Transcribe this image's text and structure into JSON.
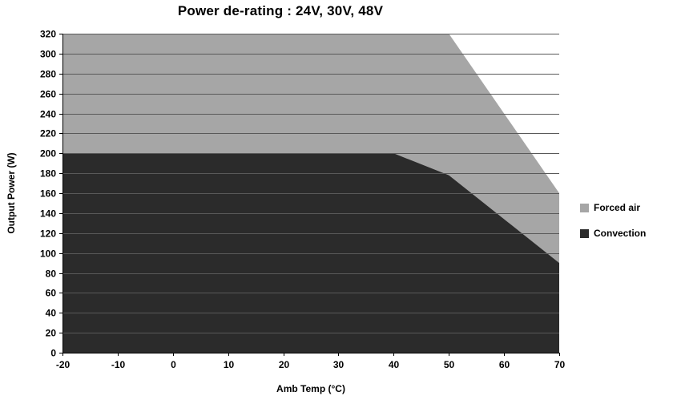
{
  "chart_data": {
    "type": "area",
    "title": "Power de-rating : 24V, 30V, 48V",
    "xlabel": "Amb Temp (°C)",
    "ylabel": "Output Power (W)",
    "xlim": [
      -20,
      70
    ],
    "ylim": [
      0,
      320
    ],
    "xticks": [
      -20,
      -10,
      0,
      10,
      20,
      30,
      40,
      50,
      60,
      70
    ],
    "yticks": [
      0,
      20,
      40,
      60,
      80,
      100,
      120,
      140,
      160,
      180,
      200,
      220,
      240,
      260,
      280,
      300,
      320
    ],
    "grid": true,
    "legend_position": "right",
    "series": [
      {
        "name": "Forced air",
        "color": "#a6a6a6",
        "points": [
          [
            -20,
            320
          ],
          [
            50,
            320
          ],
          [
            70,
            160
          ]
        ]
      },
      {
        "name": "Convection",
        "color": "#2b2b2b",
        "points": [
          [
            -20,
            200
          ],
          [
            40,
            200
          ],
          [
            50,
            178
          ],
          [
            70,
            90
          ]
        ]
      }
    ],
    "colors": {
      "gridline": "#595959",
      "axis": "#000000",
      "background": "#ffffff"
    }
  }
}
